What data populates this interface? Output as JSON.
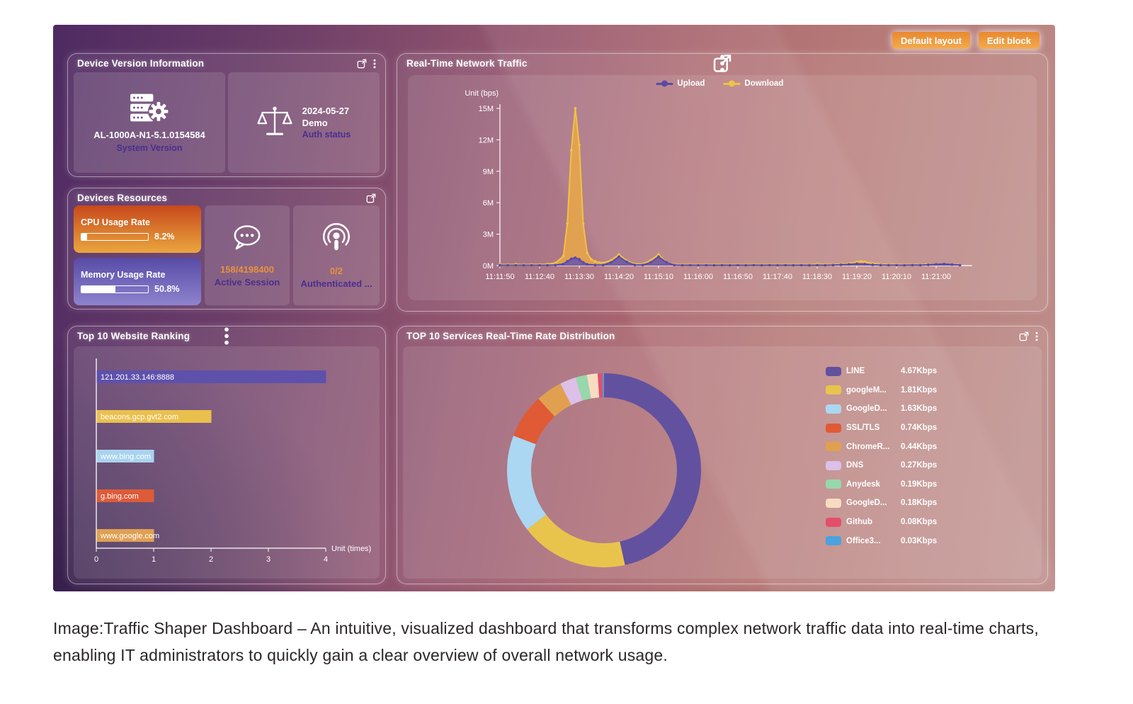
{
  "toolbar": {
    "default_layout": "Default layout",
    "edit_block": "Edit block"
  },
  "panels": {
    "device_version": {
      "title": "Device Version Information",
      "system_card": {
        "icon": "server-gear-icon",
        "version": "AL-1000A-N1-5.1.0154584",
        "label": "System Version"
      },
      "auth_card": {
        "icon": "scale-icon",
        "date": "2024-05-27",
        "name": "Demo",
        "label": "Auth status"
      }
    },
    "devices_resources": {
      "title": "Devices Resources",
      "cpu": {
        "label": "CPU Usage Rate",
        "value": "8.2%",
        "percent": 8.2
      },
      "memory": {
        "label": "Memory Usage Rate",
        "value": "50.8%",
        "percent": 50.8
      },
      "session": {
        "icon": "chat-ellipsis-icon",
        "value": "158/4198400",
        "label": "Active Session"
      },
      "auth": {
        "icon": "podcast-icon",
        "value": "0/2",
        "label": "Authenticated ..."
      }
    },
    "traffic": {
      "title": "Real-Time Network Traffic"
    },
    "website_ranking": {
      "title": "Top 10 Website Ranking"
    },
    "services": {
      "title": "TOP 10 Services Real-Time Rate Distribution"
    }
  },
  "caption": "Image:Traffic Shaper Dashboard – An intuitive, visualized dashboard that transforms complex network traffic data into real-time charts, enabling IT administrators to quickly gain a clear overview of overall network usage.",
  "chart_data": [
    {
      "id": "traffic",
      "type": "area",
      "title": "Real-Time Network Traffic",
      "unit_label": "Unit (bps)",
      "ylabel": "",
      "xlabel": "",
      "ylim_m": [
        0,
        15
      ],
      "y_ticks": [
        "0M",
        "3M",
        "6M",
        "9M",
        "12M",
        "15M"
      ],
      "x_labels": [
        "11:11:50",
        "11:12:40",
        "11:13:30",
        "11:14:20",
        "11:15:10",
        "11:16:00",
        "11:16:50",
        "11:17:40",
        "11:18:30",
        "11:19:20",
        "11:20:10",
        "11:21:00"
      ],
      "x_label_step_seconds": 50,
      "x_domain_seconds": [
        0,
        590
      ],
      "grid": false,
      "legend_position": "top",
      "series": [
        {
          "name": "Download",
          "color": "#f0c246",
          "fill": "#e7a64a",
          "points_m": [
            [
              0,
              0.12
            ],
            [
              10,
              0.1
            ],
            [
              20,
              0.13
            ],
            [
              30,
              0.1
            ],
            [
              40,
              0.12
            ],
            [
              50,
              0.11
            ],
            [
              60,
              0.14
            ],
            [
              70,
              0.25
            ],
            [
              80,
              0.9
            ],
            [
              85,
              4
            ],
            [
              90,
              11
            ],
            [
              95,
              15
            ],
            [
              100,
              11.5
            ],
            [
              105,
              4
            ],
            [
              110,
              1.2
            ],
            [
              115,
              0.6
            ],
            [
              120,
              0.4
            ],
            [
              130,
              0.25
            ],
            [
              140,
              0.5
            ],
            [
              150,
              1.05
            ],
            [
              160,
              0.45
            ],
            [
              170,
              0.15
            ],
            [
              180,
              0.15
            ],
            [
              190,
              0.5
            ],
            [
              200,
              1.05
            ],
            [
              210,
              0.3
            ],
            [
              220,
              0.12
            ],
            [
              230,
              0.1
            ],
            [
              240,
              0.12
            ],
            [
              250,
              0.1
            ],
            [
              260,
              0.12
            ],
            [
              270,
              0.1
            ],
            [
              280,
              0.12
            ],
            [
              290,
              0.1
            ],
            [
              300,
              0.12
            ],
            [
              310,
              0.1
            ],
            [
              320,
              0.12
            ],
            [
              330,
              0.1
            ],
            [
              340,
              0.12
            ],
            [
              350,
              0.1
            ],
            [
              360,
              0.12
            ],
            [
              370,
              0.1
            ],
            [
              380,
              0.12
            ],
            [
              390,
              0.1
            ],
            [
              400,
              0.15
            ],
            [
              410,
              0.12
            ],
            [
              420,
              0.12
            ],
            [
              430,
              0.14
            ],
            [
              440,
              0.2
            ],
            [
              450,
              0.35
            ],
            [
              455,
              0.4
            ],
            [
              460,
              0.35
            ],
            [
              470,
              0.2
            ],
            [
              480,
              0.14
            ],
            [
              490,
              0.12
            ],
            [
              500,
              0.12
            ],
            [
              510,
              0.1
            ],
            [
              520,
              0.12
            ],
            [
              530,
              0.1
            ],
            [
              540,
              0.14
            ],
            [
              550,
              0.12
            ],
            [
              560,
              0.14
            ],
            [
              570,
              0.12
            ],
            [
              580,
              0.1
            ]
          ]
        },
        {
          "name": "Upload",
          "color": "#5b4aa5",
          "fill": "#6a55a8",
          "points_m": [
            [
              0,
              0.03
            ],
            [
              10,
              0.03
            ],
            [
              20,
              0.03
            ],
            [
              30,
              0.03
            ],
            [
              40,
              0.03
            ],
            [
              50,
              0.03
            ],
            [
              60,
              0.03
            ],
            [
              70,
              0.05
            ],
            [
              80,
              0.15
            ],
            [
              85,
              0.4
            ],
            [
              90,
              0.65
            ],
            [
              95,
              0.75
            ],
            [
              100,
              0.6
            ],
            [
              105,
              0.3
            ],
            [
              110,
              0.12
            ],
            [
              120,
              0.05
            ],
            [
              130,
              0.06
            ],
            [
              140,
              0.3
            ],
            [
              150,
              0.85
            ],
            [
              160,
              0.35
            ],
            [
              170,
              0.06
            ],
            [
              180,
              0.06
            ],
            [
              190,
              0.3
            ],
            [
              200,
              0.85
            ],
            [
              210,
              0.3
            ],
            [
              220,
              0.05
            ],
            [
              230,
              0.03
            ],
            [
              240,
              0.04
            ],
            [
              250,
              0.03
            ],
            [
              260,
              0.04
            ],
            [
              270,
              0.03
            ],
            [
              280,
              0.04
            ],
            [
              290,
              0.03
            ],
            [
              300,
              0.04
            ],
            [
              310,
              0.03
            ],
            [
              320,
              0.04
            ],
            [
              330,
              0.03
            ],
            [
              340,
              0.04
            ],
            [
              350,
              0.03
            ],
            [
              360,
              0.04
            ],
            [
              370,
              0.03
            ],
            [
              380,
              0.04
            ],
            [
              390,
              0.03
            ],
            [
              400,
              0.04
            ],
            [
              410,
              0.03
            ],
            [
              420,
              0.05
            ],
            [
              430,
              0.08
            ],
            [
              440,
              0.12
            ],
            [
              450,
              0.18
            ],
            [
              460,
              0.14
            ],
            [
              470,
              0.08
            ],
            [
              480,
              0.05
            ],
            [
              490,
              0.04
            ],
            [
              500,
              0.04
            ],
            [
              510,
              0.03
            ],
            [
              520,
              0.05
            ],
            [
              530,
              0.04
            ],
            [
              540,
              0.08
            ],
            [
              550,
              0.12
            ],
            [
              560,
              0.15
            ],
            [
              570,
              0.1
            ],
            [
              580,
              0.05
            ]
          ]
        }
      ],
      "legend_order": [
        "Upload",
        "Download"
      ]
    },
    {
      "id": "website_ranking",
      "type": "bar",
      "orientation": "horizontal",
      "title": "Top 10 Website Ranking",
      "unit_label": "Unit (times)",
      "xlim": [
        0,
        4
      ],
      "x_ticks": [
        0,
        1,
        2,
        3,
        4
      ],
      "categories": [
        "121.201.33.146:8888",
        "beacons.gcp.gvt2.com",
        "www.bing.com",
        "g.bing.com",
        "www.google.com"
      ],
      "values": [
        4,
        2,
        1,
        1,
        1
      ],
      "colors": [
        "#5e51ab",
        "#eac04d",
        "#a9d3ee",
        "#dd5b38",
        "#dfa053"
      ],
      "grid": false
    },
    {
      "id": "services",
      "type": "pie",
      "donut": true,
      "title": "TOP 10 Services Real-Time Rate Distribution",
      "labels": [
        "LINE",
        "googleM...",
        "GoogleD...",
        "SSL/TLS",
        "ChromeR...",
        "DNS",
        "Anydesk",
        "GoogleD...",
        "Github",
        "Office3..."
      ],
      "values": [
        4.67,
        1.81,
        1.63,
        0.74,
        0.44,
        0.27,
        0.19,
        0.18,
        0.08,
        0.03
      ],
      "value_labels": [
        "4.67Kbps",
        "1.81Kbps",
        "1.63Kbps",
        "0.74Kbps",
        "0.44Kbps",
        "0.27Kbps",
        "0.19Kbps",
        "0.18Kbps",
        "0.08Kbps",
        "0.03Kbps"
      ],
      "colors": [
        "#62519f",
        "#e9c44d",
        "#abd7f2",
        "#e05a35",
        "#e0a050",
        "#dcc0e8",
        "#96d8ab",
        "#f8dcc2",
        "#e34f6b",
        "#4aa3de"
      ],
      "legend_position": "right"
    }
  ]
}
